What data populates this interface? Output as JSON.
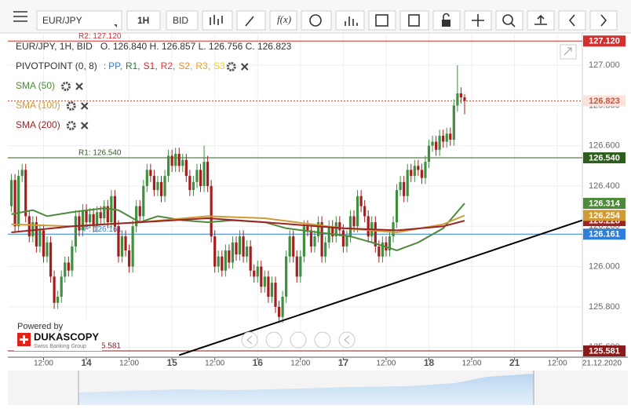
{
  "toolbar": {
    "symbol": "EUR/JPY",
    "period": "1H",
    "side": "BID",
    "fx": "f(x)"
  },
  "chart_data": {
    "type": "candlestick",
    "header": "EUR/JPY, 1H, BID",
    "ohlc_text": "O. 126.840 H. 126.857 L. 126.756 C. 126.823",
    "xlim": [
      -1,
      160
    ],
    "xticks": [
      {
        "value": 9,
        "label": "12:00"
      },
      {
        "value": 21,
        "label": "14"
      },
      {
        "value": 33,
        "label": "12:00"
      },
      {
        "value": 45,
        "label": "15"
      },
      {
        "value": 57,
        "label": "12:00"
      },
      {
        "value": 69,
        "label": "16"
      },
      {
        "value": 81,
        "label": "12:00"
      },
      {
        "value": 93,
        "label": "17"
      },
      {
        "value": 105,
        "label": "12:00"
      },
      {
        "value": 117,
        "label": "18"
      },
      {
        "value": 129,
        "label": "12:00"
      },
      {
        "value": 141,
        "label": "21"
      },
      {
        "value": 153,
        "label": "12:00"
      }
    ],
    "date_label": "21.12.2020",
    "ylim": [
      125.55,
      127.16
    ],
    "yticks": [
      {
        "value": 125.6,
        "label": "125.600"
      },
      {
        "value": 125.8,
        "label": "125.800"
      },
      {
        "value": 126.0,
        "label": "126.000"
      },
      {
        "value": 126.2,
        "label": "126.200"
      },
      {
        "value": 126.4,
        "label": "126.400"
      },
      {
        "value": 126.6,
        "label": "126.600"
      },
      {
        "value": 126.8,
        "label": "126.800"
      },
      {
        "value": 127.0,
        "label": "127.000"
      }
    ],
    "grid": true,
    "series": [
      {
        "name": "EUR/JPY",
        "up_color": "#3f8f3f",
        "down_color": "#a51d1d",
        "open": [
          126.3,
          126.43,
          126.2,
          126.45,
          126.48,
          126.25,
          126.15,
          126.22,
          126.1,
          126.18,
          126.05,
          126.12,
          125.95,
          125.82,
          125.85,
          125.95,
          126.02,
          125.98,
          126.1,
          126.25,
          126.18,
          126.28,
          126.22,
          126.26,
          126.2,
          126.27,
          126.24,
          126.3,
          126.22,
          126.35,
          126.2,
          126.05,
          126.15,
          126.08,
          126.0,
          126.2,
          126.3,
          126.25,
          126.4,
          126.48,
          126.45,
          126.38,
          126.42,
          126.35,
          126.45,
          126.55,
          126.5,
          126.56,
          126.5,
          126.53,
          126.45,
          126.38,
          126.42,
          126.48,
          126.4,
          126.52,
          126.4,
          126.15,
          126.0,
          126.05,
          125.98,
          126.08,
          126.02,
          126.12,
          126.06,
          126.15,
          126.05,
          126.1,
          125.98,
          125.95,
          126.0,
          125.9,
          125.95,
          125.85,
          125.92,
          125.8,
          125.75,
          125.85,
          126.05,
          126.15,
          126.05,
          125.95,
          126.05,
          126.2,
          126.18,
          126.1,
          126.15,
          126.22,
          126.05,
          126.12,
          126.2,
          126.15,
          126.22,
          126.18,
          126.1,
          126.15,
          126.25,
          126.2,
          126.35,
          126.3,
          126.25,
          126.15,
          126.22,
          126.1,
          126.05,
          126.12,
          126.08,
          126.15,
          126.22,
          126.38,
          126.42,
          126.35,
          126.48,
          126.45,
          126.5,
          126.48,
          126.44,
          126.52,
          126.6,
          126.62,
          126.58,
          126.65,
          126.62,
          126.66,
          126.63,
          126.8,
          126.86,
          126.84
        ],
        "high": [
          126.46,
          126.46,
          126.48,
          126.51,
          126.51,
          126.28,
          126.25,
          126.25,
          126.21,
          126.21,
          126.15,
          126.15,
          125.98,
          125.88,
          125.98,
          126.05,
          126.05,
          126.13,
          126.28,
          126.28,
          126.31,
          126.31,
          126.29,
          126.29,
          126.3,
          126.3,
          126.33,
          126.33,
          126.38,
          126.38,
          126.23,
          126.18,
          126.18,
          126.11,
          126.23,
          126.33,
          126.33,
          126.43,
          126.51,
          126.51,
          126.48,
          126.45,
          126.45,
          126.48,
          126.58,
          126.58,
          126.59,
          126.59,
          126.56,
          126.56,
          126.48,
          126.45,
          126.51,
          126.51,
          126.6,
          126.55,
          126.43,
          126.18,
          126.08,
          126.08,
          126.11,
          126.11,
          126.15,
          126.15,
          126.18,
          126.18,
          126.13,
          126.13,
          126.01,
          126.03,
          126.03,
          125.98,
          125.98,
          125.95,
          125.95,
          125.83,
          125.88,
          126.08,
          126.18,
          126.18,
          126.08,
          126.08,
          126.23,
          126.23,
          126.21,
          126.18,
          126.25,
          126.25,
          126.15,
          126.23,
          126.23,
          126.25,
          126.25,
          126.21,
          126.18,
          126.28,
          126.28,
          126.38,
          126.38,
          126.33,
          126.28,
          126.25,
          126.25,
          126.13,
          126.15,
          126.15,
          126.18,
          126.25,
          126.41,
          126.45,
          126.45,
          126.51,
          126.51,
          126.53,
          126.53,
          126.51,
          126.55,
          126.63,
          126.65,
          126.65,
          126.68,
          126.68,
          126.69,
          126.69,
          126.83,
          127.0,
          126.89,
          126.857
        ],
        "low": [
          126.27,
          126.17,
          126.17,
          126.42,
          126.22,
          126.12,
          126.12,
          126.07,
          126.07,
          126.02,
          126.02,
          125.92,
          125.79,
          125.79,
          125.82,
          125.92,
          125.95,
          125.95,
          126.07,
          126.15,
          126.15,
          126.19,
          126.19,
          126.17,
          126.17,
          126.21,
          126.21,
          126.19,
          126.19,
          126.17,
          126.02,
          126.02,
          126.05,
          125.97,
          125.97,
          126.17,
          126.22,
          126.22,
          126.37,
          126.42,
          126.35,
          126.35,
          126.32,
          126.32,
          126.42,
          126.47,
          126.47,
          126.47,
          126.47,
          126.42,
          126.35,
          126.35,
          126.39,
          126.37,
          126.37,
          126.37,
          126.12,
          125.97,
          125.97,
          125.95,
          125.95,
          125.99,
          125.99,
          126.03,
          126.03,
          126.02,
          126.02,
          125.95,
          125.92,
          125.92,
          125.87,
          125.87,
          125.82,
          125.82,
          125.77,
          125.72,
          125.72,
          125.82,
          126.02,
          126.02,
          125.92,
          125.92,
          126.02,
          126.15,
          126.07,
          126.07,
          126.12,
          126.02,
          126.02,
          126.09,
          126.12,
          126.12,
          126.15,
          126.07,
          126.07,
          126.12,
          126.17,
          126.17,
          126.27,
          126.22,
          126.12,
          126.12,
          126.07,
          126.02,
          126.02,
          126.05,
          126.05,
          126.12,
          126.19,
          126.35,
          126.32,
          126.32,
          126.42,
          126.42,
          126.45,
          126.41,
          126.41,
          126.49,
          126.57,
          126.55,
          126.55,
          126.59,
          126.59,
          126.6,
          126.6,
          126.77,
          126.81,
          126.756
        ],
        "close": [
          126.43,
          126.2,
          126.45,
          126.48,
          126.25,
          126.15,
          126.22,
          126.1,
          126.18,
          126.05,
          126.12,
          125.95,
          125.82,
          125.85,
          125.95,
          126.02,
          125.98,
          126.1,
          126.25,
          126.18,
          126.28,
          126.22,
          126.26,
          126.2,
          126.27,
          126.24,
          126.3,
          126.22,
          126.35,
          126.2,
          126.05,
          126.15,
          126.08,
          126.0,
          126.2,
          126.3,
          126.25,
          126.4,
          126.48,
          126.45,
          126.38,
          126.42,
          126.35,
          126.45,
          126.55,
          126.5,
          126.56,
          126.5,
          126.53,
          126.45,
          126.38,
          126.42,
          126.48,
          126.4,
          126.52,
          126.4,
          126.15,
          126.0,
          126.05,
          125.98,
          126.08,
          126.02,
          126.12,
          126.06,
          126.15,
          126.05,
          126.1,
          125.98,
          125.95,
          126.0,
          125.9,
          125.95,
          125.85,
          125.92,
          125.8,
          125.75,
          125.85,
          126.05,
          126.15,
          126.05,
          125.95,
          126.05,
          126.2,
          126.18,
          126.1,
          126.15,
          126.22,
          126.05,
          126.12,
          126.2,
          126.15,
          126.22,
          126.18,
          126.1,
          126.15,
          126.25,
          126.2,
          126.35,
          126.3,
          126.25,
          126.15,
          126.22,
          126.1,
          126.05,
          126.12,
          126.08,
          126.15,
          126.22,
          126.38,
          126.42,
          126.35,
          126.48,
          126.45,
          126.5,
          126.48,
          126.44,
          126.52,
          126.6,
          126.62,
          126.58,
          126.65,
          126.62,
          126.66,
          126.63,
          126.8,
          126.86,
          126.84,
          126.823
        ]
      }
    ],
    "current_price": {
      "value": 126.823,
      "label": "126.823",
      "color": "#c8553d"
    },
    "indicators": [
      {
        "name": "SMA (50)",
        "color": "#4f8a3c",
        "x": [
          0,
          6,
          10,
          17,
          26,
          30,
          36,
          41,
          48,
          55,
          62,
          71,
          77,
          86,
          95,
          101,
          108,
          114,
          121,
          127
        ],
        "values": [
          126.26,
          126.28,
          126.25,
          126.27,
          126.29,
          126.28,
          126.22,
          126.25,
          126.23,
          126.22,
          126.23,
          126.22,
          126.19,
          126.17,
          126.15,
          126.12,
          126.08,
          126.12,
          126.19,
          126.314
        ],
        "last_label": "126.314"
      },
      {
        "name": "SMA (100)",
        "color": "#d09a35",
        "x": [
          0,
          17,
          36,
          55,
          71,
          93,
          108,
          121,
          127
        ],
        "values": [
          126.21,
          126.2,
          126.22,
          126.25,
          126.24,
          126.19,
          126.17,
          126.21,
          126.254
        ],
        "last_label": "126.254"
      },
      {
        "name": "SMA (200)",
        "color": "#9b2424",
        "x": [
          0,
          17,
          36,
          55,
          71,
          93,
          108,
          121,
          127
        ],
        "values": [
          126.17,
          126.2,
          126.22,
          126.24,
          126.22,
          126.19,
          126.18,
          126.2,
          126.228
        ],
        "last_label": "126.228"
      }
    ],
    "pivot_legend": {
      "name": "PIVOTPOINT (0, 8)",
      "lead": ":",
      "items": [
        {
          "label": "PP,",
          "color": "#2f7ed8"
        },
        {
          "label": "R1,",
          "color": "#2e7d32"
        },
        {
          "label": "S1,",
          "color": "#c62828"
        },
        {
          "label": "R2,",
          "color": "#e53935"
        },
        {
          "label": "S2,",
          "color": "#ef8c1a"
        },
        {
          "label": "R3,",
          "color": "#f0a020"
        },
        {
          "label": "S3",
          "color": "#f2d21b"
        }
      ]
    },
    "pivots": [
      {
        "name": "R2",
        "value": 127.12,
        "label": "R2: 127.120",
        "axis_label": "127.120",
        "color": "#d32f2f"
      },
      {
        "name": "R1",
        "value": 126.54,
        "label": "R1: 126.540",
        "axis_label": "126.540",
        "color": "#2e5e1e"
      },
      {
        "name": "PP",
        "value": 126.161,
        "label": "PP: 126.161",
        "axis_label": "126.161",
        "color": "#2f7ed8"
      },
      {
        "name": "S1",
        "value": 125.581,
        "label": "S1: 125.581",
        "axis_label": "125.581",
        "color": "#8b1a1a"
      }
    ],
    "trendline": {
      "x": [
        47,
        160
      ],
      "values": [
        125.56,
        126.23
      ],
      "color": "#000000"
    },
    "branding": {
      "powered": "Powered by",
      "brand": "DUKASCOPY",
      "tagline": "Swiss Banking Group"
    }
  }
}
